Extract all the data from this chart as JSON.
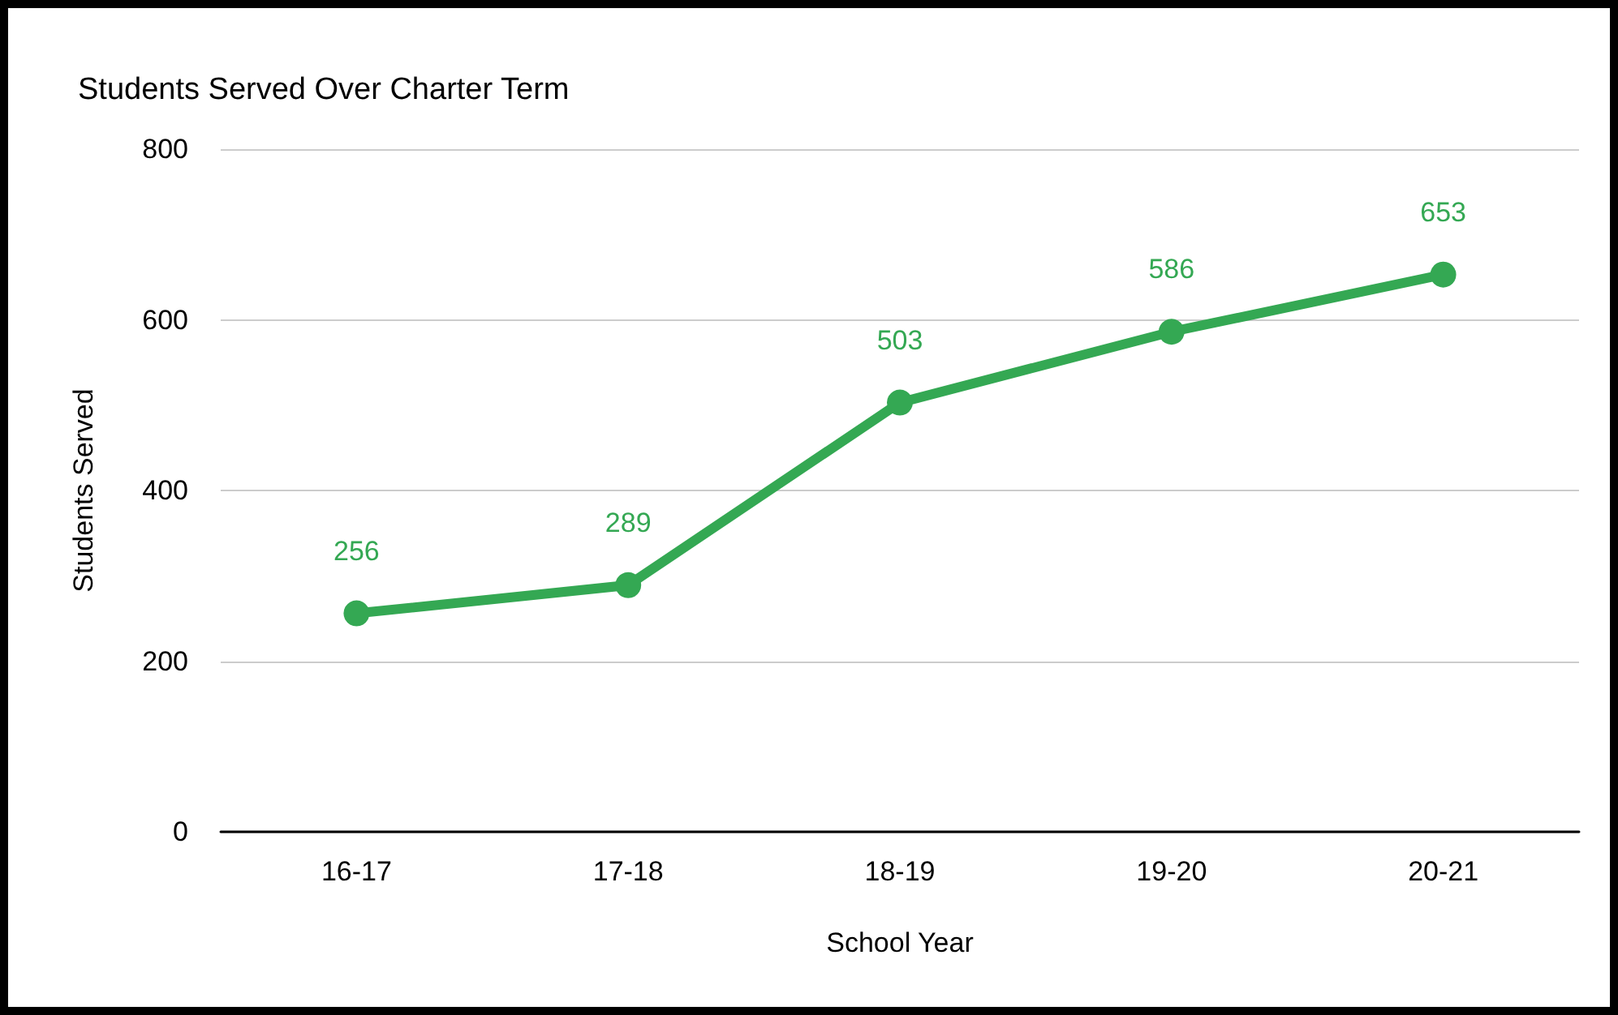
{
  "chart_data": {
    "type": "line",
    "title": "Students Served Over Charter Term",
    "xlabel": "School Year",
    "ylabel": "Students Served",
    "categories": [
      "16-17",
      "17-18",
      "18-19",
      "19-20",
      "20-21"
    ],
    "series": [
      {
        "color": "#34a853",
        "values": [
          256,
          289,
          503,
          586,
          653
        ]
      }
    ],
    "ylim": [
      0,
      800
    ],
    "yticks": [
      0,
      200,
      400,
      600,
      800
    ],
    "grid": "y",
    "marker": "circle",
    "line_style": "solid",
    "data_labels": true
  }
}
